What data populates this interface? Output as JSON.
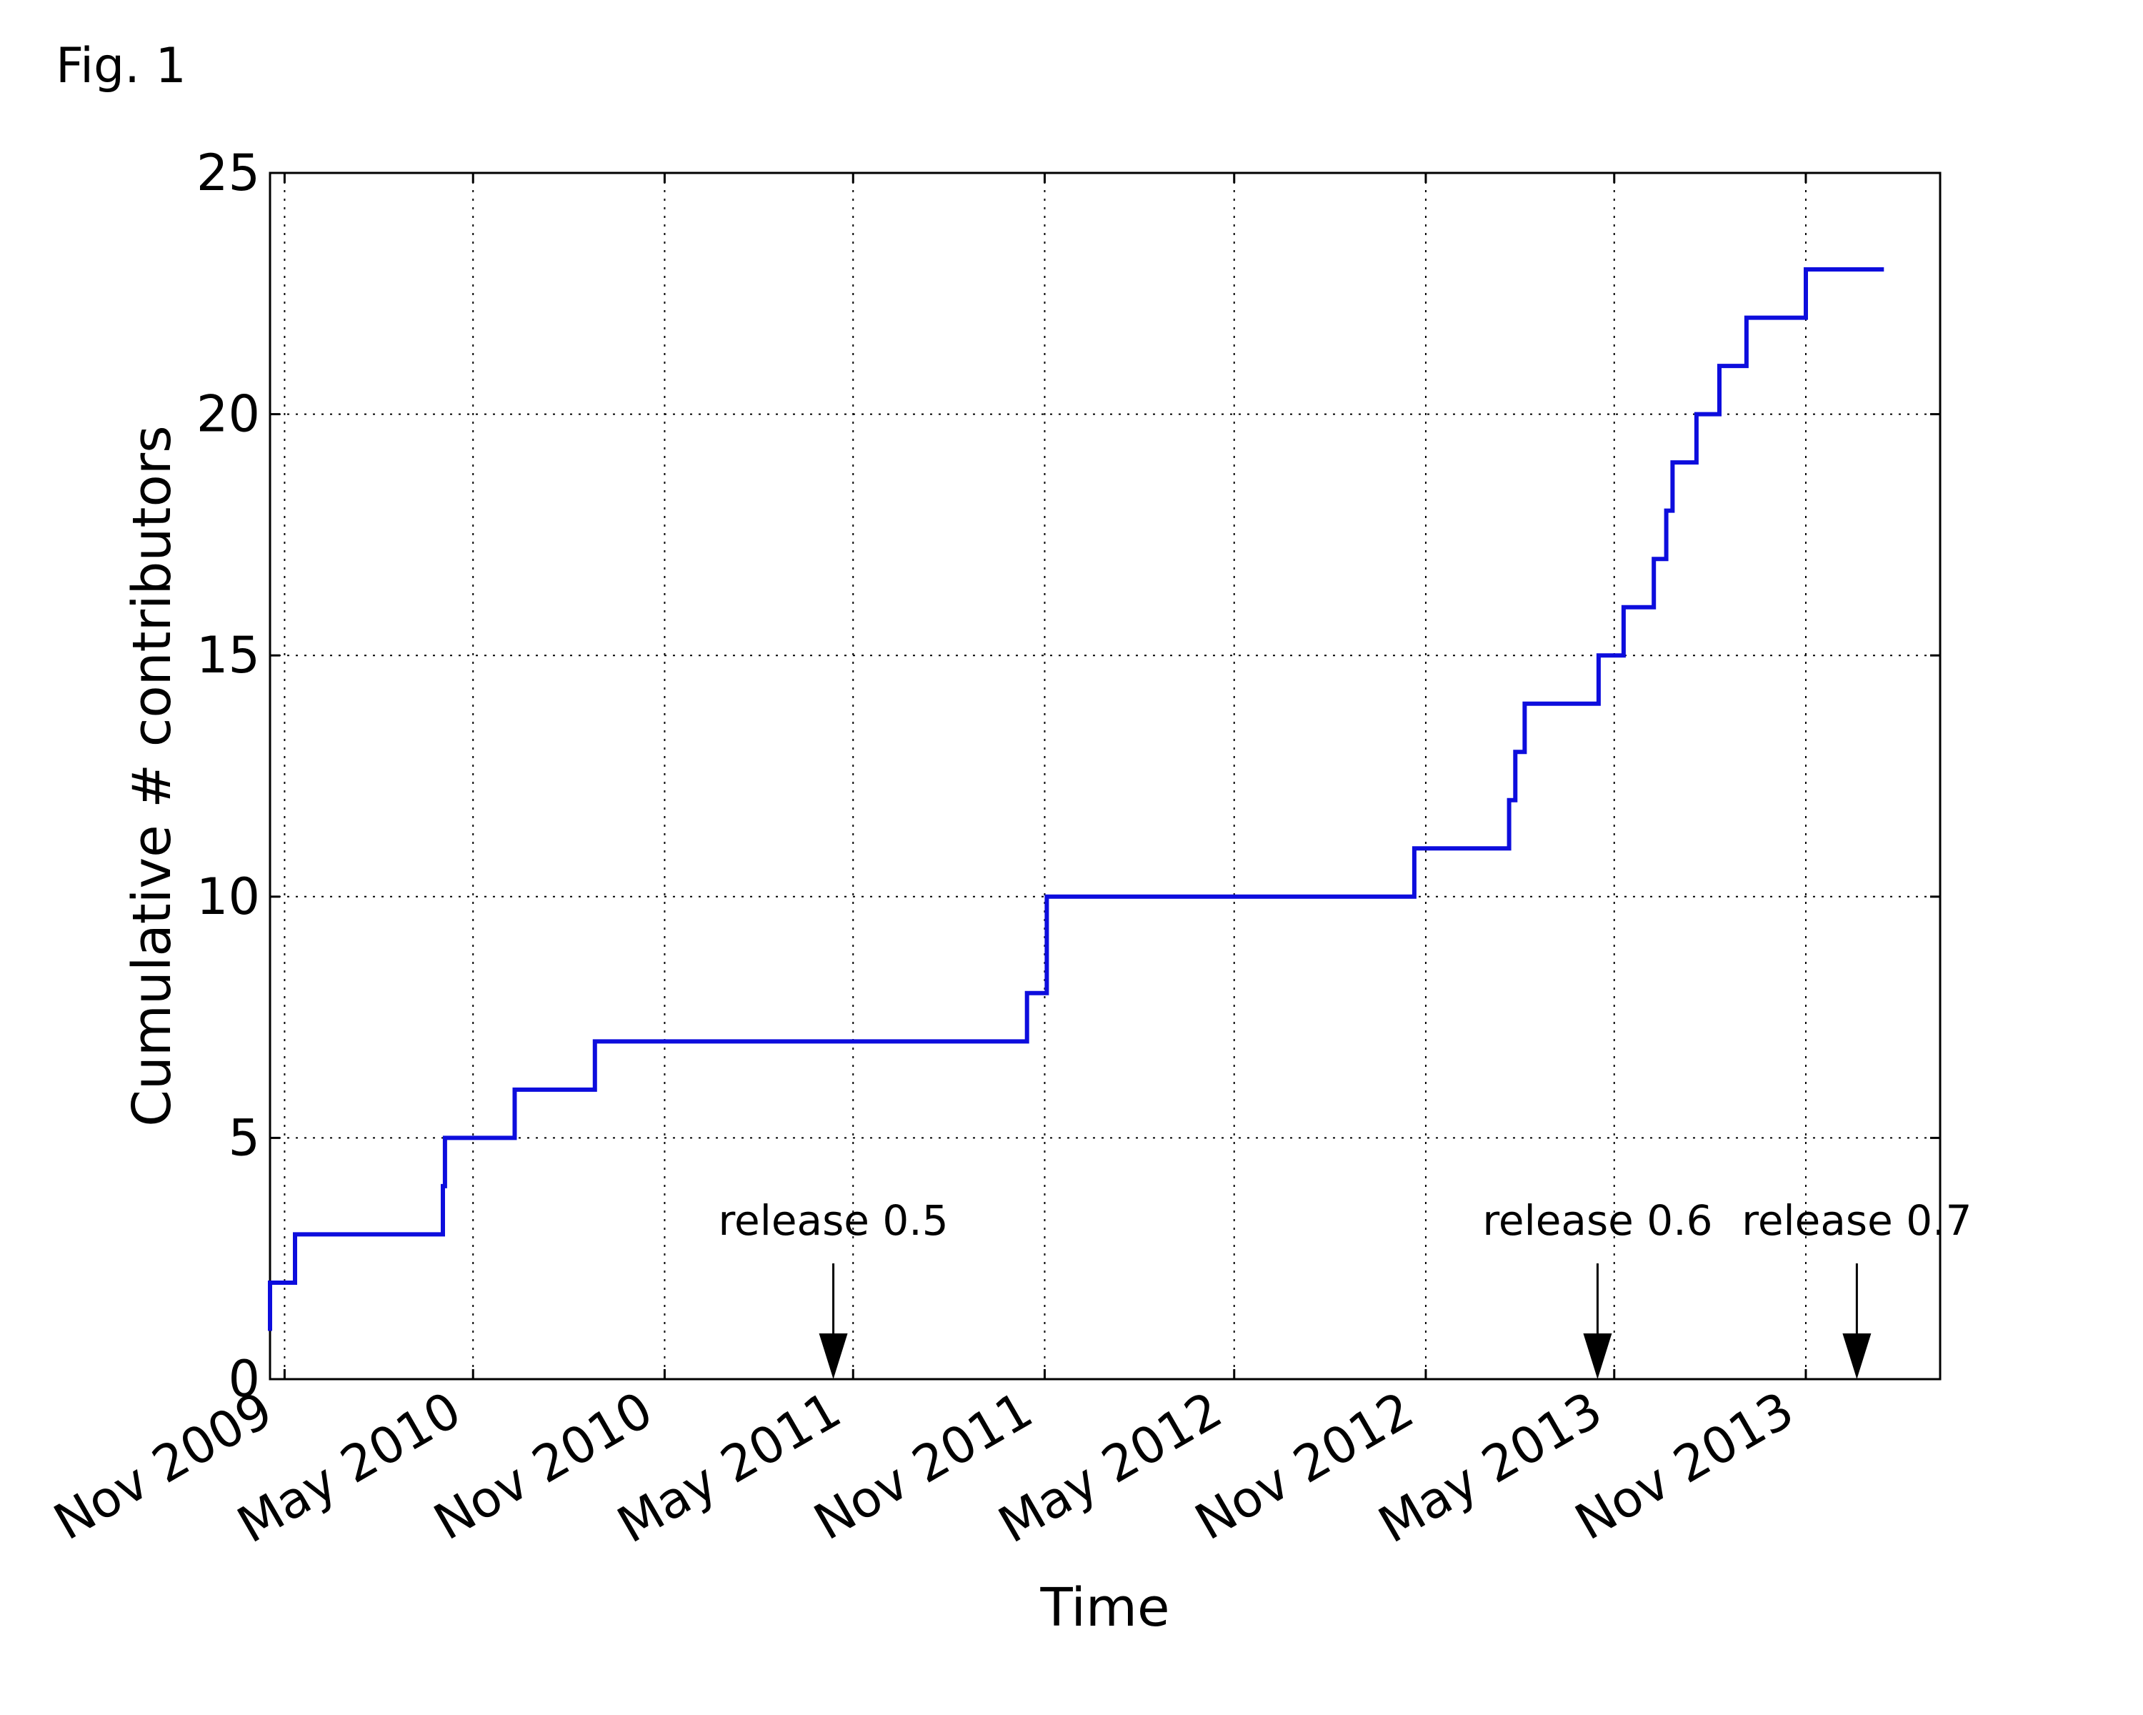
{
  "figure_label": "Fig. 1",
  "colors": {
    "series": "#0d0ddd",
    "axes": "#000000"
  },
  "chart_data": {
    "type": "line",
    "line_style": "step",
    "title": "",
    "xlabel": "Time",
    "ylabel": "Cumulative # contributors",
    "x_scale": "date",
    "xlim": [
      "2009-10-18",
      "2014-03-10"
    ],
    "ylim": [
      0,
      25
    ],
    "x_ticks": [
      {
        "date": "2009-11-01",
        "label": "Nov 2009"
      },
      {
        "date": "2010-05-01",
        "label": "May 2010"
      },
      {
        "date": "2010-11-01",
        "label": "Nov 2010"
      },
      {
        "date": "2011-05-01",
        "label": "May 2011"
      },
      {
        "date": "2011-11-01",
        "label": "Nov 2011"
      },
      {
        "date": "2012-05-01",
        "label": "May 2012"
      },
      {
        "date": "2012-11-01",
        "label": "Nov 2012"
      },
      {
        "date": "2013-05-01",
        "label": "May 2013"
      },
      {
        "date": "2013-11-01",
        "label": "Nov 2013"
      }
    ],
    "y_ticks": [
      {
        "value": 0,
        "label": "0"
      },
      {
        "value": 5,
        "label": "5"
      },
      {
        "value": 10,
        "label": "10"
      },
      {
        "value": 15,
        "label": "15"
      },
      {
        "value": 20,
        "label": "20"
      },
      {
        "value": 25,
        "label": "25"
      }
    ],
    "grid": true,
    "series": [
      {
        "values": [
          [
            "2009-10-18",
            1
          ],
          [
            "2009-10-18",
            2
          ],
          [
            "2009-11-11",
            3
          ],
          [
            "2010-04-02",
            4
          ],
          [
            "2010-04-04",
            5
          ],
          [
            "2010-06-10",
            6
          ],
          [
            "2010-08-26",
            7
          ],
          [
            "2011-10-15",
            8
          ],
          [
            "2011-11-03",
            10
          ],
          [
            "2012-10-21",
            11
          ],
          [
            "2013-01-20",
            12
          ],
          [
            "2013-01-26",
            13
          ],
          [
            "2013-02-04",
            14
          ],
          [
            "2013-04-16",
            15
          ],
          [
            "2013-05-10",
            16
          ],
          [
            "2013-06-08",
            17
          ],
          [
            "2013-06-20",
            18
          ],
          [
            "2013-06-26",
            19
          ],
          [
            "2013-07-19",
            20
          ],
          [
            "2013-08-10",
            21
          ],
          [
            "2013-09-05",
            22
          ],
          [
            "2013-11-01",
            23
          ],
          [
            "2014-01-15",
            23
          ]
        ]
      }
    ],
    "annotations": [
      {
        "text": "release 0.5",
        "date": "2011-04-12"
      },
      {
        "text": "release 0.6",
        "date": "2013-04-15"
      },
      {
        "text": "release 0.7",
        "date": "2013-12-20"
      }
    ]
  }
}
